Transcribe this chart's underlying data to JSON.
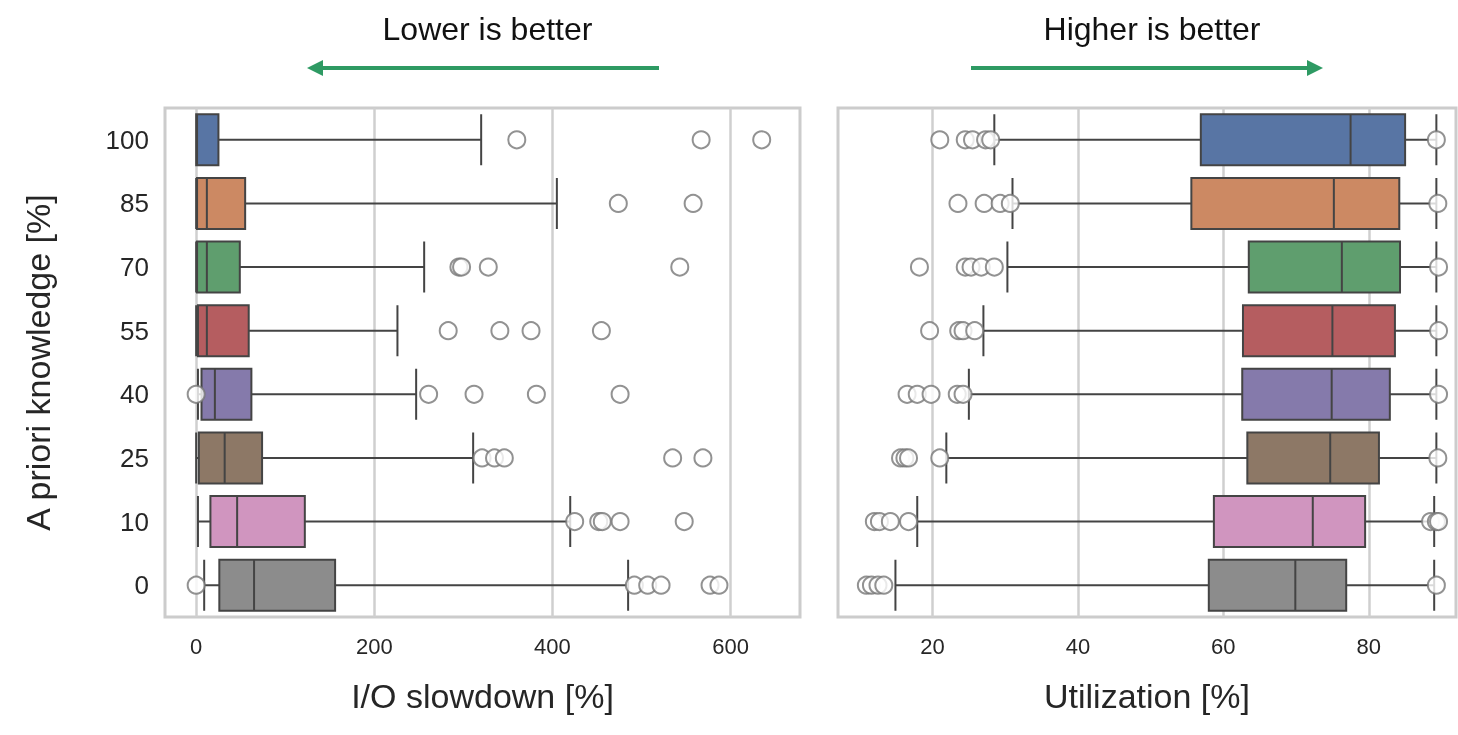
{
  "chart_data": [
    {
      "type": "box",
      "orientation": "horizontal",
      "ylabel": "A priori knowledge [%]",
      "xlabel": "I/O slowdown [%]",
      "annotations": [
        "Lower is better"
      ],
      "categories": [
        "100",
        "85",
        "70",
        "55",
        "40",
        "25",
        "10",
        "0"
      ],
      "colors": [
        "#5875a4",
        "#cc8963",
        "#5f9e6e",
        "#b55d60",
        "#857aab",
        "#8d7866",
        "#d095bf",
        "#8c8c8c"
      ],
      "boxes": [
        {
          "low": 0,
          "q1": 0,
          "median": 1,
          "q3": 25,
          "high": 320,
          "outliers": [
            360,
            567,
            635
          ]
        },
        {
          "low": 0,
          "q1": 1,
          "median": 12,
          "q3": 55,
          "high": 405,
          "outliers": [
            474,
            558
          ]
        },
        {
          "low": 0,
          "q1": 1,
          "median": 12,
          "q3": 49,
          "high": 256,
          "outliers": [
            295,
            298,
            328,
            543
          ]
        },
        {
          "low": 0,
          "q1": 2,
          "median": 12,
          "q3": 59,
          "high": 226,
          "outliers": [
            283,
            341,
            376,
            455
          ]
        },
        {
          "low": 2,
          "q1": 6,
          "median": 21,
          "q3": 62,
          "high": 247,
          "outliers": [
            0,
            261,
            312,
            382,
            476
          ]
        },
        {
          "low": 0,
          "q1": 3,
          "median": 32,
          "q3": 74,
          "high": 311,
          "outliers": [
            321,
            335,
            346,
            535,
            569
          ]
        },
        {
          "low": 2,
          "q1": 16,
          "median": 46,
          "q3": 122,
          "high": 420,
          "outliers": [
            425,
            452,
            456,
            476,
            548
          ]
        },
        {
          "low": 9,
          "q1": 26,
          "median": 65,
          "q3": 156,
          "high": 485,
          "outliers": [
            0,
            492,
            507,
            522,
            577,
            587
          ]
        }
      ],
      "xlim": [
        -35,
        678
      ],
      "xticks": [
        0,
        200,
        400,
        600
      ],
      "grid": "x"
    },
    {
      "type": "box",
      "orientation": "horizontal",
      "xlabel": "Utilization [%]",
      "annotations": [
        "Higher is better"
      ],
      "tick_labels": "x",
      "categories": [
        "100",
        "85",
        "70",
        "55",
        "40",
        "25",
        "10",
        "0"
      ],
      "colors": [
        "#5875a4",
        "#cc8963",
        "#5f9e6e",
        "#b55d60",
        "#857aab",
        "#8d7866",
        "#d095bf",
        "#8c8c8c"
      ],
      "boxes": [
        {
          "low": 28.5,
          "q1": 56.9,
          "median": 77.5,
          "q3": 85.0,
          "high": 89.3,
          "outliers": [
            21,
            24.5,
            25.5,
            27.3,
            28,
            89.3
          ]
        },
        {
          "low": 31,
          "q1": 55.6,
          "median": 75.2,
          "q3": 84.2,
          "high": 89.3,
          "outliers": [
            23.5,
            27.1,
            29.3,
            30.7,
            89.5
          ]
        },
        {
          "low": 30.3,
          "q1": 63.5,
          "median": 76.3,
          "q3": 84.3,
          "high": 89.3,
          "outliers": [
            18.2,
            24.5,
            25.3,
            26.7,
            28.5,
            89.6
          ]
        },
        {
          "low": 27,
          "q1": 62.7,
          "median": 75,
          "q3": 83.6,
          "high": 89.3,
          "outliers": [
            19.6,
            23.6,
            24.2,
            25.8,
            89.6
          ]
        },
        {
          "low": 25,
          "q1": 62.6,
          "median": 74.9,
          "q3": 82.9,
          "high": 89.3,
          "outliers": [
            16.5,
            17.9,
            19.8,
            23.4,
            24.2,
            89.6
          ]
        },
        {
          "low": 21.9,
          "q1": 63.3,
          "median": 74.7,
          "q3": 81.4,
          "high": 89.3,
          "outliers": [
            15.6,
            16.2,
            16.7,
            21,
            89.5
          ]
        },
        {
          "low": 17.9,
          "q1": 58.7,
          "median": 72.3,
          "q3": 79.5,
          "high": 89,
          "outliers": [
            12,
            12.7,
            14.2,
            16.7,
            88.5,
            89.3,
            89.6
          ]
        },
        {
          "low": 14.9,
          "q1": 58,
          "median": 69.9,
          "q3": 76.9,
          "high": 89,
          "outliers": [
            10.9,
            11.6,
            12.5,
            13.3,
            89.3
          ]
        }
      ],
      "xlim": [
        7,
        92
      ],
      "xticks": [
        20,
        40,
        60,
        80
      ],
      "grid": "x"
    }
  ]
}
